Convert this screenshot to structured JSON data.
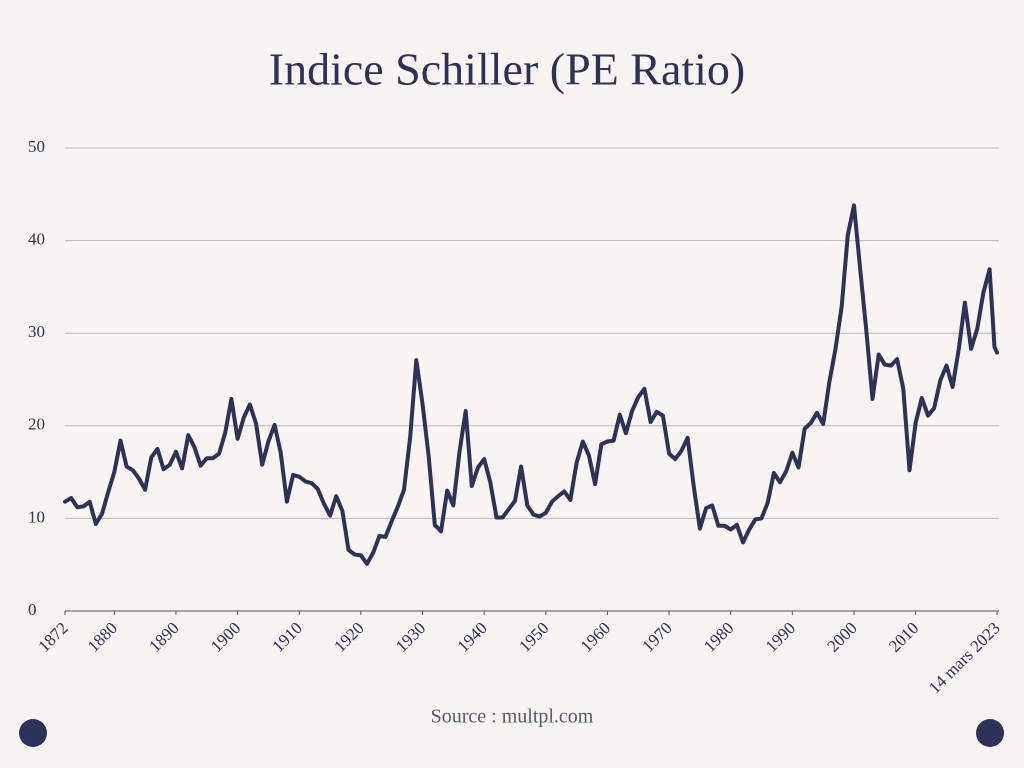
{
  "chart_data": {
    "type": "line",
    "title": "Indice Schiller (PE Ratio)",
    "source": "Source : multpl.com",
    "color": "#2c3258",
    "grid": true,
    "x": [
      1872,
      1873,
      1874,
      1875,
      1876,
      1877,
      1878,
      1879,
      1880,
      1881,
      1882,
      1883,
      1884,
      1885,
      1886,
      1887,
      1888,
      1889,
      1890,
      1891,
      1892,
      1893,
      1894,
      1895,
      1896,
      1897,
      1898,
      1899,
      1900,
      1901,
      1902,
      1903,
      1904,
      1905,
      1906,
      1907,
      1908,
      1909,
      1910,
      1911,
      1912,
      1913,
      1914,
      1915,
      1916,
      1917,
      1918,
      1919,
      1920,
      1921,
      1922,
      1923,
      1924,
      1925,
      1926,
      1927,
      1928,
      1929,
      1930,
      1931,
      1932,
      1933,
      1934,
      1935,
      1936,
      1937,
      1938,
      1939,
      1940,
      1941,
      1942,
      1943,
      1944,
      1945,
      1946,
      1947,
      1948,
      1949,
      1950,
      1951,
      1952,
      1953,
      1954,
      1955,
      1956,
      1957,
      1958,
      1959,
      1960,
      1961,
      1962,
      1963,
      1964,
      1965,
      1966,
      1967,
      1968,
      1969,
      1970,
      1971,
      1972,
      1973,
      1974,
      1975,
      1976,
      1977,
      1978,
      1979,
      1980,
      1981,
      1982,
      1983,
      1984,
      1985,
      1986,
      1987,
      1988,
      1989,
      1990,
      1991,
      1992,
      1993,
      1994,
      1995,
      1996,
      1997,
      1998,
      1999,
      2000,
      2001,
      2002,
      2003,
      2004,
      2005,
      2006,
      2007,
      2008,
      2009,
      2010,
      2011,
      2012,
      2013,
      2014,
      2015,
      2016,
      2017,
      2018,
      2019,
      2020,
      2021,
      2022,
      2022.8,
      2023.2
    ],
    "values": [
      11.8,
      12.2,
      11.2,
      11.3,
      11.8,
      9.4,
      10.5,
      12.8,
      15,
      18.4,
      15.6,
      15.2,
      14.3,
      13.1,
      16.6,
      17.5,
      15.3,
      15.8,
      17.2,
      15.4,
      19,
      17.7,
      15.7,
      16.5,
      16.5,
      17,
      19.3,
      22.9,
      18.6,
      20.9,
      22.3,
      20.2,
      15.8,
      18.3,
      20.1,
      17.1,
      11.8,
      14.7,
      14.5,
      14,
      13.8,
      13.2,
      11.6,
      10.3,
      12.4,
      10.8,
      6.6,
      6.1,
      6,
      5.1,
      6.3,
      8.1,
      8,
      9.7,
      11.3,
      13.1,
      18.8,
      27.1,
      22.4,
      16.7,
      9.3,
      8.6,
      13,
      11.4,
      17.2,
      21.6,
      13.5,
      15.5,
      16.4,
      13.9,
      10.1,
      10.1,
      11,
      11.9,
      15.6,
      11.4,
      10.4,
      10.2,
      10.6,
      11.8,
      12.4,
      12.9,
      12,
      16,
      18.3,
      16.8,
      13.7,
      18,
      18.3,
      18.4,
      21.2,
      19.2,
      21.6,
      23.1,
      24,
      20.4,
      21.5,
      21.1,
      17,
      16.4,
      17.3,
      18.7,
      13.5,
      8.9,
      11.1,
      11.4,
      9.2,
      9.2,
      8.8,
      9.3,
      7.4,
      8.8,
      9.9,
      10,
      11.7,
      14.9,
      13.9,
      15.1,
      17.1,
      15.5,
      19.7,
      20.3,
      21.4,
      20.2,
      24.7,
      28.3,
      32.9,
      40.6,
      43.8,
      36.9,
      30.3,
      22.9,
      27.7,
      26.6,
      26.5,
      27.2,
      24,
      15.2,
      20.3,
      23,
      21.1,
      21.9,
      24.9,
      26.5,
      24.2,
      28.3,
      33.3,
      28.3,
      30.5,
      34.4,
      36.9,
      28.5,
      27.9
    ],
    "xlim": [
      1872,
      2023.2
    ],
    "xticks": [
      1872,
      1880,
      1890,
      1900,
      1910,
      1920,
      1930,
      1940,
      1950,
      1960,
      1970,
      1980,
      1990,
      2000,
      2010,
      {
        "value": 2023.2,
        "label": "14 mars 2023"
      }
    ],
    "ylim": [
      0,
      50
    ],
    "yticks": [
      0,
      10,
      20,
      30,
      40,
      50
    ]
  }
}
